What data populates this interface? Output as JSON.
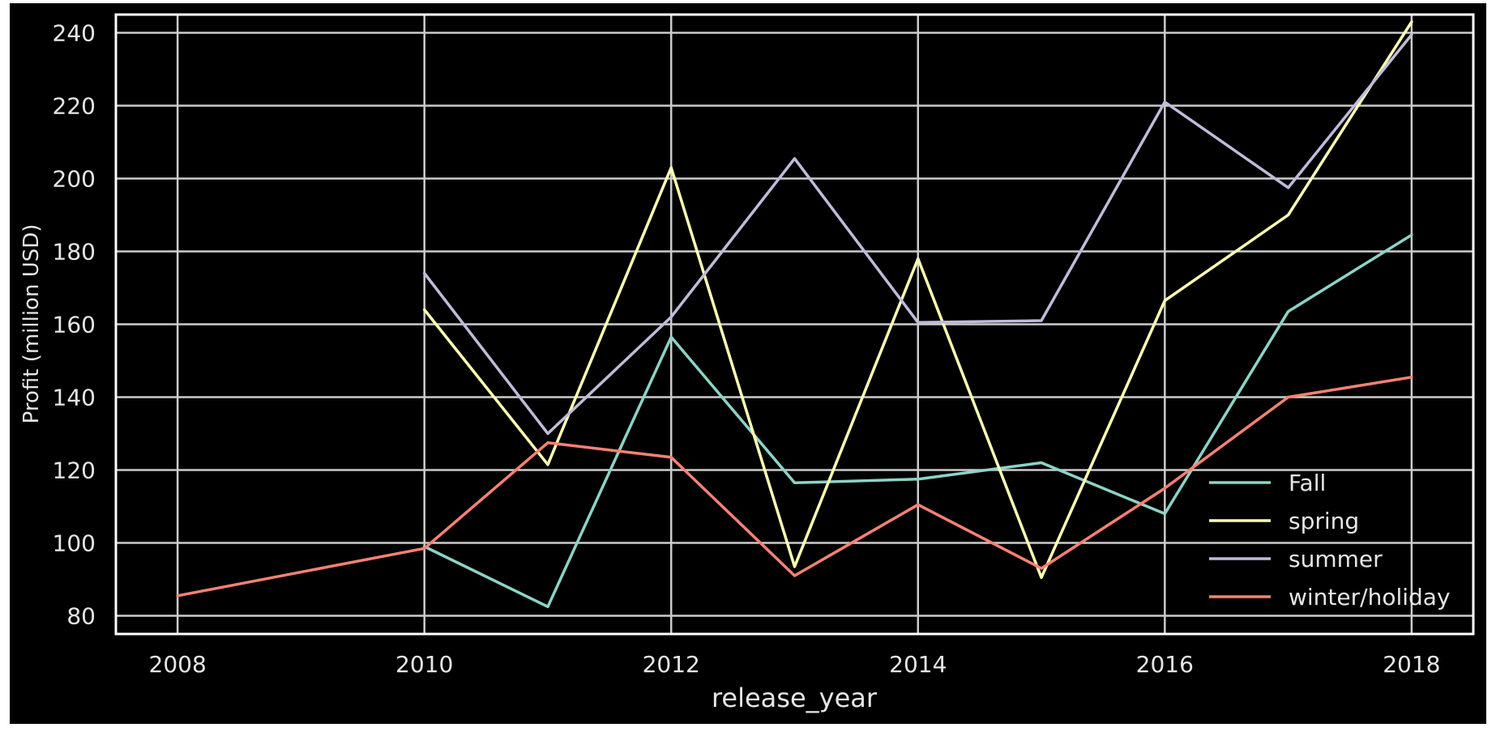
{
  "chart_data": {
    "type": "line",
    "title": "",
    "xlabel": "release_year",
    "ylabel": "Profit (million USD)",
    "xlim": [
      2007.5,
      2018.5
    ],
    "ylim": [
      75,
      245
    ],
    "x_ticks": [
      2008,
      2010,
      2012,
      2014,
      2016,
      2018
    ],
    "y_ticks": [
      80,
      100,
      120,
      140,
      160,
      180,
      200,
      220,
      240
    ],
    "grid": true,
    "legend_position": "lower-right",
    "style": {
      "background": "#000000",
      "grid_color": "#cccccc",
      "text_color": "#e6e6e6",
      "spine_color": "#ffffff"
    },
    "series": [
      {
        "name": "Fall",
        "color": "#8dd3c7",
        "x": [
          2010,
          2011,
          2012,
          2013,
          2014,
          2015,
          2016,
          2017,
          2018
        ],
        "values": [
          99,
          82.5,
          156.5,
          116.5,
          117.5,
          122,
          108,
          163.5,
          184.5
        ]
      },
      {
        "name": "spring",
        "color": "#feffb3",
        "x": [
          2010,
          2011,
          2012,
          2013,
          2014,
          2015,
          2016,
          2017,
          2018
        ],
        "values": [
          164,
          121.5,
          203,
          93.5,
          178,
          90.5,
          166.5,
          190,
          243
        ]
      },
      {
        "name": "summer",
        "color": "#bfbbd9",
        "x": [
          2010,
          2011,
          2012,
          2013,
          2014,
          2015,
          2016,
          2017,
          2018
        ],
        "values": [
          174,
          130,
          162,
          205.5,
          160.5,
          161,
          221,
          197.5,
          239.5
        ]
      },
      {
        "name": "winter/holiday",
        "color": "#fa8174",
        "x": [
          2008,
          2010,
          2011,
          2012,
          2013,
          2014,
          2015,
          2016,
          2017,
          2018
        ],
        "values": [
          85.5,
          98.5,
          127.5,
          123.5,
          91,
          110.5,
          93,
          115,
          140,
          145.5
        ]
      }
    ]
  }
}
